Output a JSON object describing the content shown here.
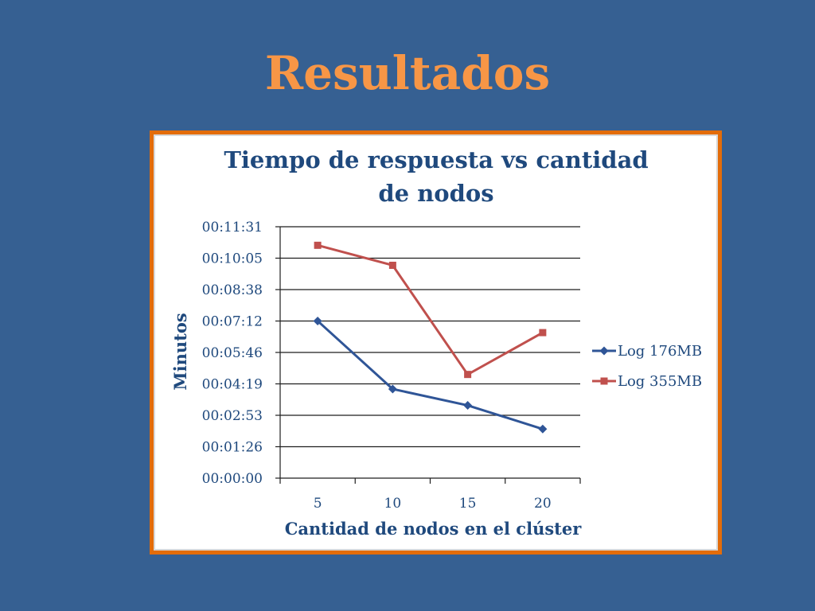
{
  "slide": {
    "title": "Resultados"
  },
  "colors": {
    "background": "#366092",
    "title": "#F79646",
    "frame": "#E36C0A",
    "text": "#1F497D",
    "series_1": "#2F5597",
    "series_2": "#C0504D"
  },
  "chart_data": {
    "type": "line",
    "title_lines": [
      "Tiempo de respuesta vs cantidad",
      "de nodos"
    ],
    "xlabel": "Cantidad de nodos en el clúster",
    "ylabel": "Minutos",
    "categories": [
      "5",
      "10",
      "15",
      "20"
    ],
    "y_ticks": [
      "00:00:00",
      "00:01:26",
      "00:02:53",
      "00:04:19",
      "00:05:46",
      "00:07:12",
      "00:08:38",
      "00:10:05",
      "00:11:31"
    ],
    "y_unit": "seconds",
    "ylim": [
      0,
      691
    ],
    "grid": true,
    "legend_position": "right",
    "series": [
      {
        "name": "Log 176MB",
        "marker": "diamond",
        "values": [
          432,
          245,
          200,
          135
        ]
      },
      {
        "name": "Log 355MB",
        "marker": "square",
        "values": [
          640,
          585,
          285,
          400
        ]
      }
    ]
  }
}
